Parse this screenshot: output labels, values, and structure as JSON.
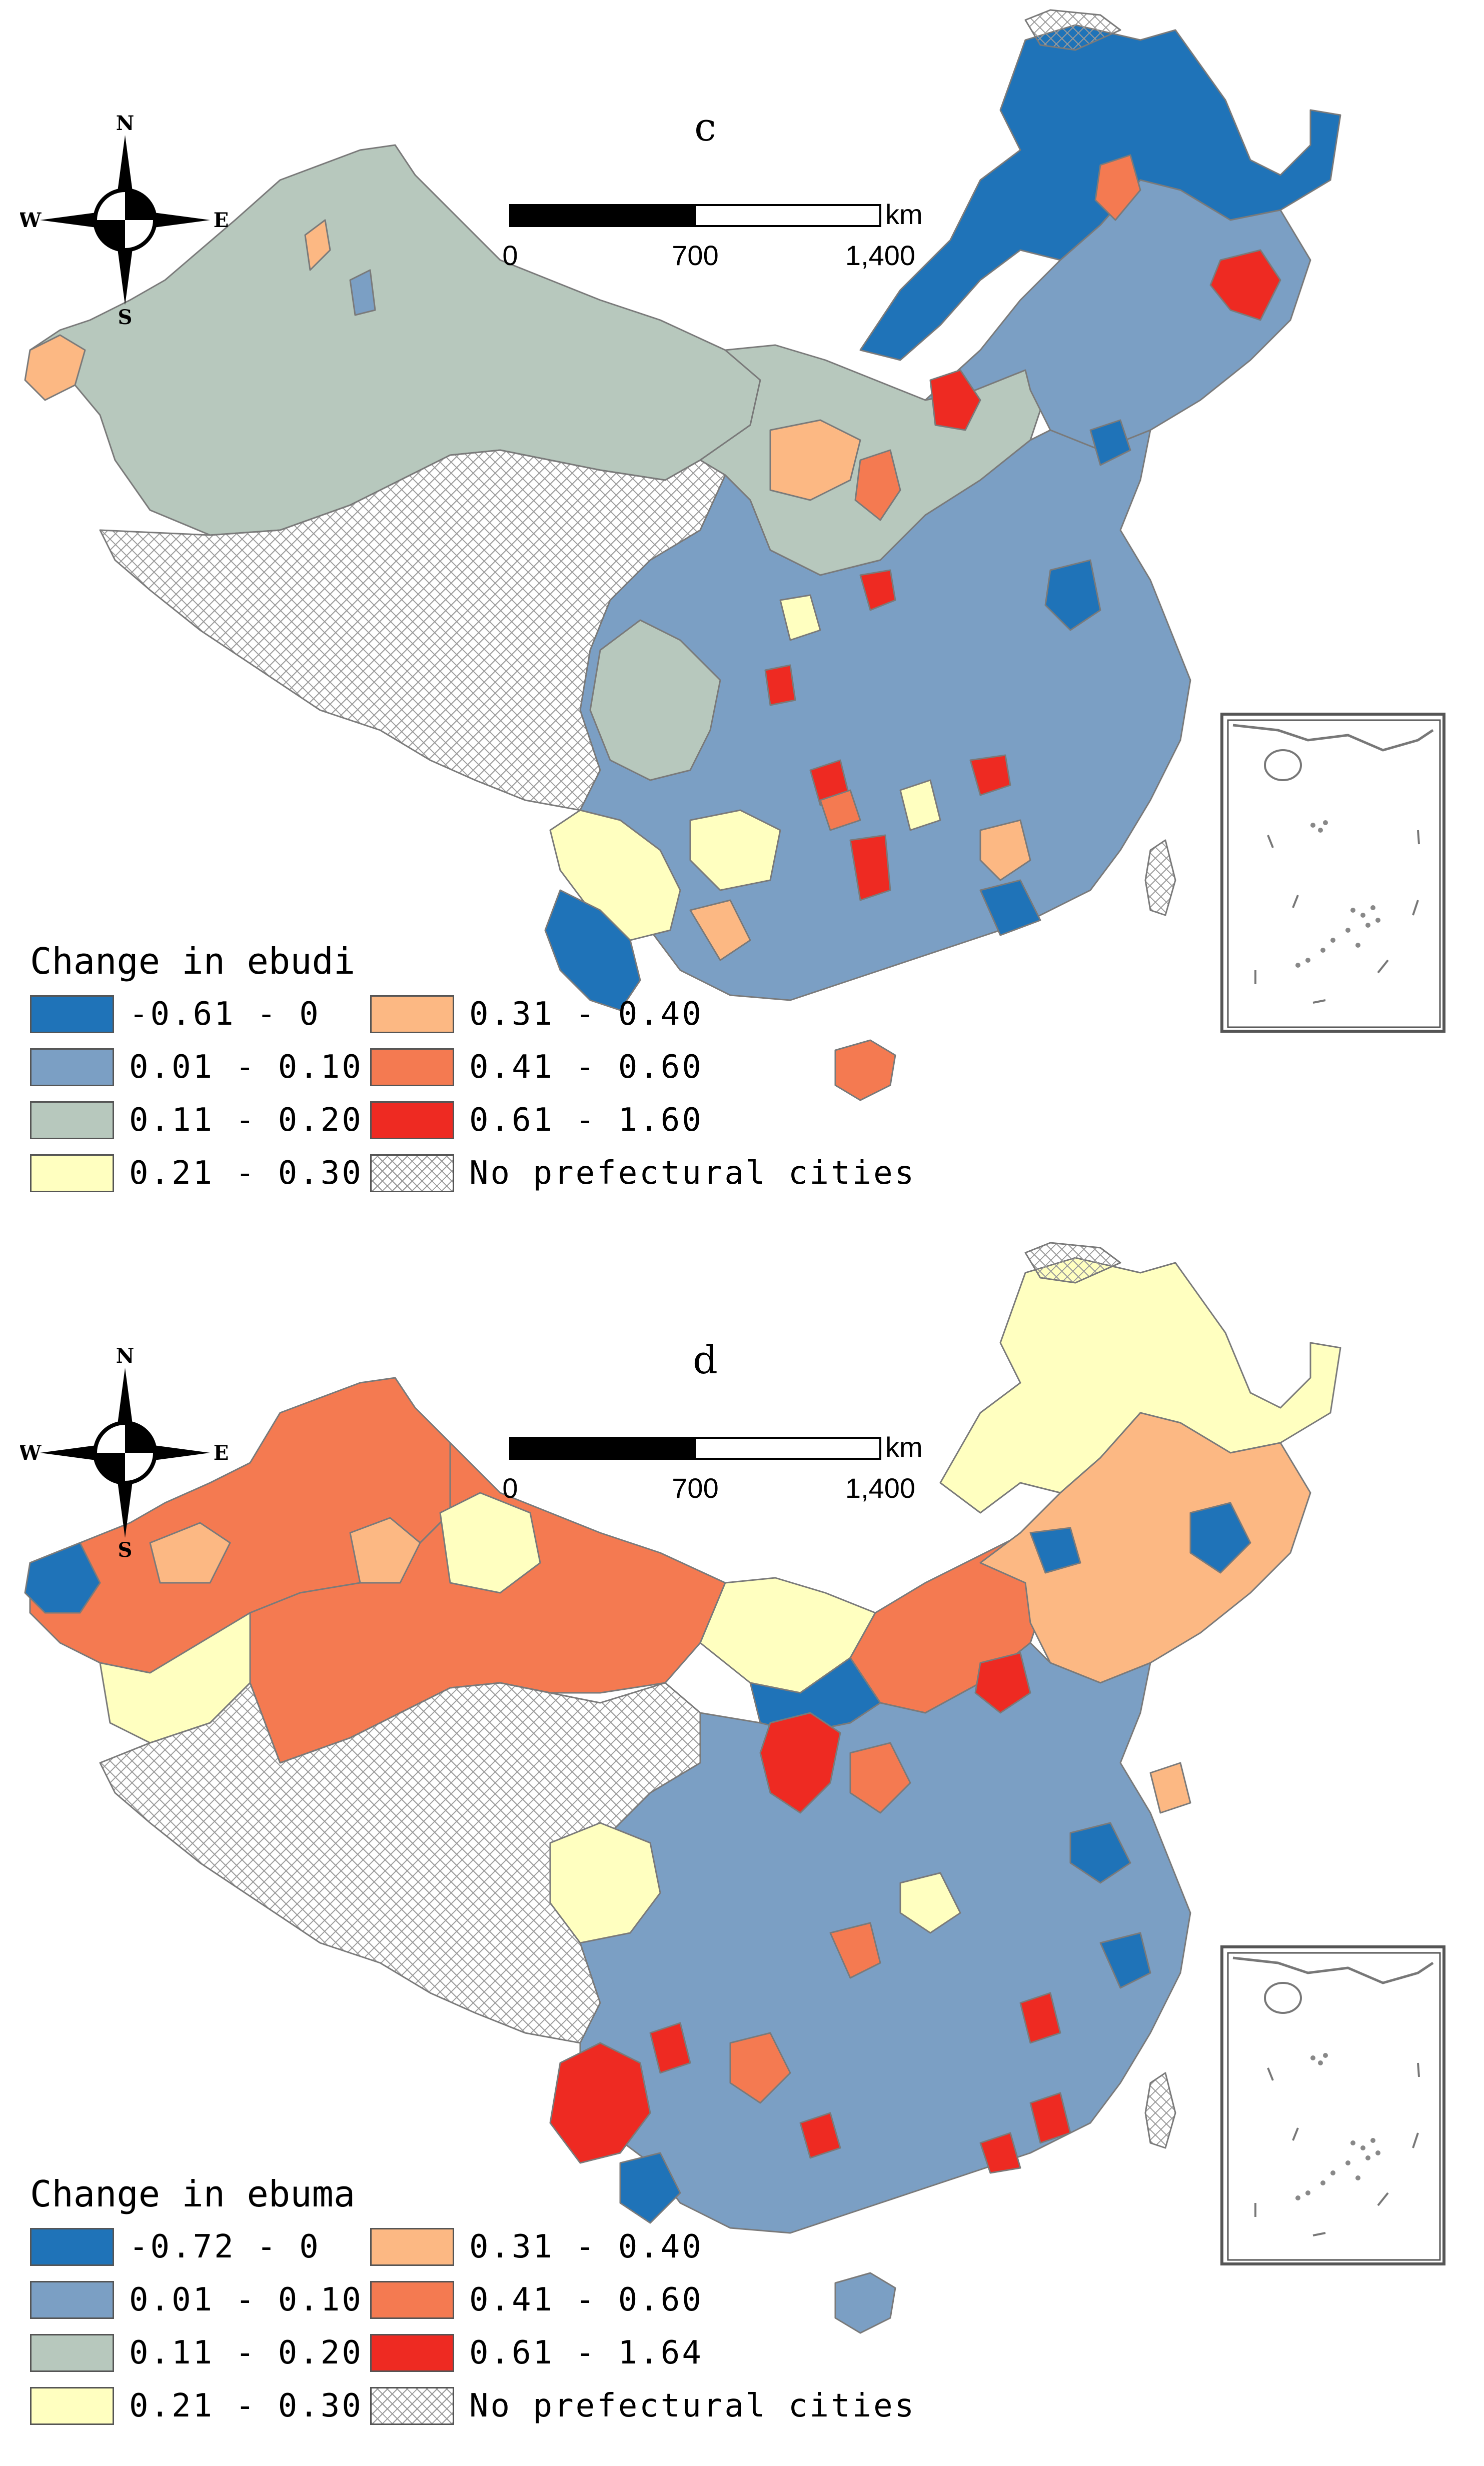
{
  "colors": {
    "c_neg": "#1f73b8",
    "c_01": "#7b9fc4",
    "c_11": "#b7c8bd",
    "c_21": "#ffffc0",
    "c_31": "#fcb883",
    "c_41": "#f47a51",
    "c_61": "#ee2a22",
    "border": "#808080"
  },
  "compass": {
    "n": "N",
    "s": "S",
    "e": "E",
    "w": "W"
  },
  "scale": {
    "unit": "km",
    "ticks": [
      "0",
      "700",
      "1,400"
    ]
  },
  "panels": [
    {
      "letter": "c",
      "legend_title": "Change in ebudi",
      "classes": [
        {
          "label": "-0.61 - 0",
          "color": "#1f73b8",
          "pattern": false
        },
        {
          "label": "0.31 - 0.40",
          "color": "#fcb883",
          "pattern": false
        },
        {
          "label": "0.01 - 0.10",
          "color": "#7b9fc4",
          "pattern": false
        },
        {
          "label": "0.41 - 0.60",
          "color": "#f47a51",
          "pattern": false
        },
        {
          "label": "0.11 - 0.20",
          "color": "#b7c8bd",
          "pattern": false
        },
        {
          "label": "0.61 - 1.60",
          "color": "#ee2a22",
          "pattern": false
        },
        {
          "label": "0.21 - 0.30",
          "color": "#ffffc0",
          "pattern": false
        },
        {
          "label": "No prefectural cities",
          "color": "#ffffff",
          "pattern": true
        }
      ]
    },
    {
      "letter": "d",
      "legend_title": "Change in ebuma",
      "classes": [
        {
          "label": "-0.72 - 0",
          "color": "#1f73b8",
          "pattern": false
        },
        {
          "label": "0.31 - 0.40",
          "color": "#fcb883",
          "pattern": false
        },
        {
          "label": "0.01 - 0.10",
          "color": "#7b9fc4",
          "pattern": false
        },
        {
          "label": "0.41 - 0.60",
          "color": "#f47a51",
          "pattern": false
        },
        {
          "label": "0.11 - 0.20",
          "color": "#b7c8bd",
          "pattern": false
        },
        {
          "label": "0.61 - 1.64",
          "color": "#ee2a22",
          "pattern": false
        },
        {
          "label": "0.21 - 0.30",
          "color": "#ffffc0",
          "pattern": false
        },
        {
          "label": "No prefectural cities",
          "color": "#ffffff",
          "pattern": true
        }
      ]
    }
  ]
}
